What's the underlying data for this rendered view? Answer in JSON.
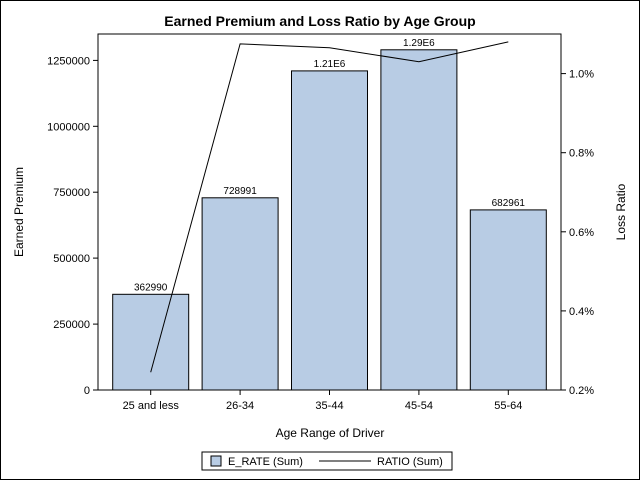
{
  "chart_data": {
    "type": "bar",
    "title": "Earned Premium and Loss Ratio by Age Group",
    "xlabel": "Age Range of Driver",
    "ylabel": "Earned Premium",
    "y2label": "Loss Ratio",
    "categories": [
      "25 and less",
      "26-34",
      "35-44",
      "45-54",
      "55-64"
    ],
    "ylim": [
      0,
      1350000
    ],
    "yticks": [
      0,
      250000,
      500000,
      750000,
      1000000,
      1250000
    ],
    "y2lim": [
      0.2,
      1.1
    ],
    "y2ticks": [
      0.2,
      0.4,
      0.6,
      0.8,
      1.0
    ],
    "y2tick_labels": [
      "0.2%",
      "0.4%",
      "0.6%",
      "0.8%",
      "1.0%"
    ],
    "grid": false,
    "legend_position": "bottom-center",
    "series": [
      {
        "name": "E_RATE (Sum)",
        "type": "bar",
        "axis": "left",
        "values": [
          362990,
          728991,
          1210000,
          1290000,
          682961
        ],
        "data_labels": [
          "362990",
          "728991",
          "1.21E6",
          "1.29E6",
          "682961"
        ],
        "color": "#b8cce4"
      },
      {
        "name": "RATIO (Sum)",
        "type": "line",
        "axis": "right",
        "values": [
          0.245,
          1.075,
          1.065,
          1.03,
          1.08
        ],
        "color": "#000000"
      }
    ]
  }
}
